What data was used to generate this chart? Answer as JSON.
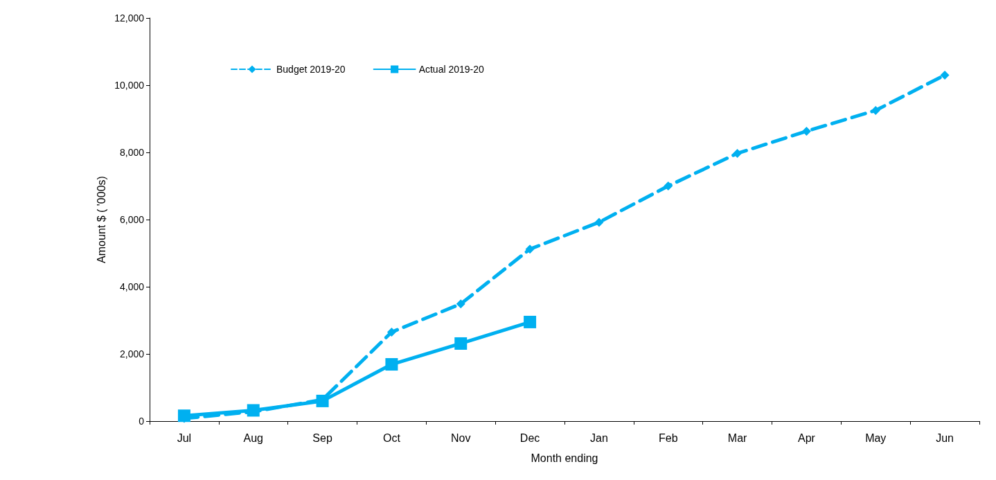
{
  "chart_data": {
    "type": "line",
    "xlabel": "Month ending",
    "ylabel": "Amount $ ( '000s)",
    "categories": [
      "Jul",
      "Aug",
      "Sep",
      "Oct",
      "Nov",
      "Dec",
      "Jan",
      "Feb",
      "Mar",
      "Apr",
      "May",
      "Jun"
    ],
    "series": [
      {
        "name": "Budget 2019-20",
        "color": "#00b0f0",
        "marker": "diamond",
        "line_style": "dashed",
        "values": [
          80,
          280,
          640,
          2650,
          3490,
          5120,
          5920,
          7000,
          7970,
          8630,
          9250,
          10300
        ]
      },
      {
        "name": "Actual 2019-20",
        "color": "#00b0f0",
        "marker": "square",
        "line_style": "solid",
        "values": [
          160,
          320,
          600,
          1690,
          2310,
          2950,
          null,
          null,
          null,
          null,
          null,
          null
        ]
      }
    ],
    "ylim": [
      0,
      12000
    ],
    "yticks": [
      0,
      {
        "value": 2000,
        "label": "2,000"
      },
      {
        "value": 4000,
        "label": "4,000"
      },
      {
        "value": 6000,
        "label": "6,000"
      },
      {
        "value": 8000,
        "label": "8,000"
      },
      {
        "value": 10000,
        "label": "10,000"
      },
      {
        "value": 12000,
        "label": "12,000"
      }
    ],
    "grid": false,
    "legend": "top left"
  }
}
